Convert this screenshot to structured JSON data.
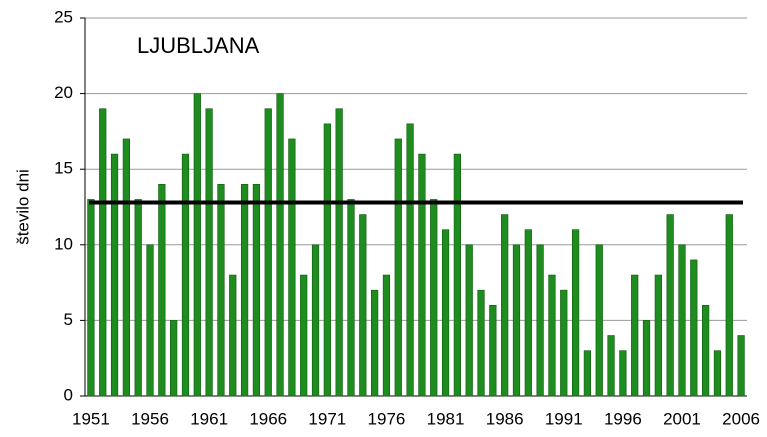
{
  "chart_data": {
    "type": "bar",
    "title": "LJUBLJANA",
    "y_label": "število dni",
    "categories": [
      "1951",
      null,
      null,
      null,
      null,
      "1956",
      null,
      null,
      null,
      null,
      "1961",
      null,
      null,
      null,
      null,
      "1966",
      null,
      null,
      null,
      null,
      "1971",
      null,
      null,
      null,
      null,
      "1976",
      null,
      null,
      null,
      null,
      "1981",
      null,
      null,
      null,
      null,
      "1986",
      null,
      null,
      null,
      null,
      "1991",
      null,
      null,
      null,
      null,
      "1996",
      null,
      null,
      null,
      null,
      "2001",
      null,
      null,
      null,
      null,
      "2006"
    ],
    "values": [
      13,
      19,
      16,
      17,
      13,
      10,
      14,
      5,
      16,
      20,
      19,
      14,
      8,
      14,
      14,
      19,
      20,
      17,
      8,
      10,
      18,
      19,
      13,
      12,
      7,
      8,
      17,
      18,
      16,
      13,
      11,
      16,
      10,
      7,
      6,
      12,
      10,
      11,
      10,
      8,
      7,
      11,
      3,
      10,
      4,
      3,
      8,
      5,
      8,
      12,
      10,
      9,
      6,
      3,
      12,
      4
    ],
    "color": "#1f8c1f",
    "reference_line": 12.8,
    "reference_color": "#000000",
    "ylim": [
      0,
      25
    ],
    "yticks": [
      0,
      5,
      10,
      15,
      20,
      25
    ],
    "grid": true
  }
}
